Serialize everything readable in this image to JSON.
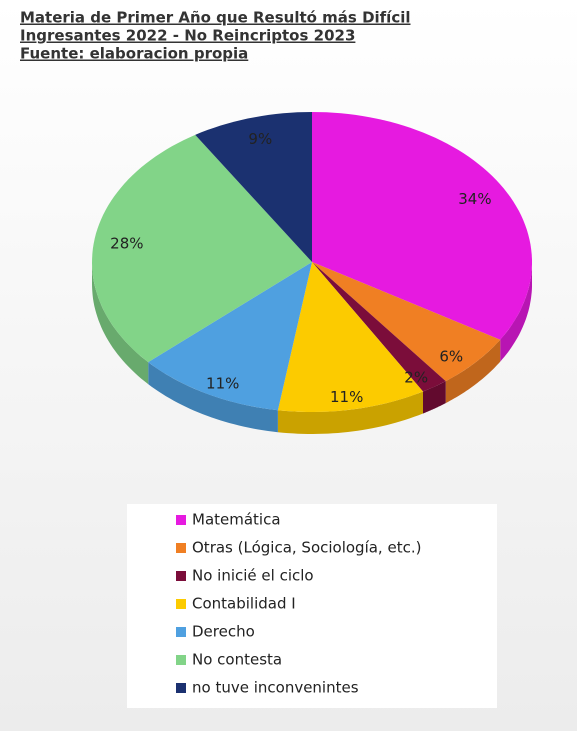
{
  "chart_data": {
    "type": "pie",
    "title": "Materia de Primer Año que Resultó más Difícil",
    "subtitle": "Ingresantes 2022 - No Reincriptos 2023",
    "source": "Fuente: elaboracion propia",
    "categories": [
      "Matemática",
      "Otras (Lógica, Sociología, etc.)",
      "No inicié el ciclo",
      "Contabilidad I",
      "Derecho",
      "No contesta",
      "no tuve inconvenintes"
    ],
    "values": [
      34,
      6,
      2,
      11,
      11,
      28,
      9
    ],
    "value_labels": [
      "34%",
      "6%",
      "2%",
      "11%",
      "11%",
      "28%",
      "9%"
    ],
    "colors": [
      "#e61ae0",
      "#f07f23",
      "#7b0d3a",
      "#fccb00",
      "#4fa0e0",
      "#82d488",
      "#1b3170"
    ],
    "legend": "bottom"
  }
}
